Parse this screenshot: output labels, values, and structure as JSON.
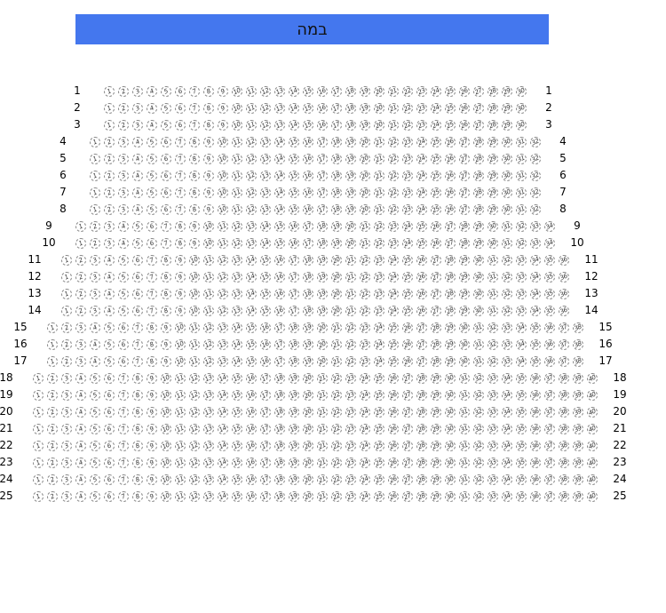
{
  "stage": {
    "label": "במה",
    "color": "#4477ee"
  },
  "rows": [
    {
      "label": "1",
      "seats": 30
    },
    {
      "label": "2",
      "seats": 30
    },
    {
      "label": "3",
      "seats": 30
    },
    {
      "label": "4",
      "seats": 32
    },
    {
      "label": "5",
      "seats": 32
    },
    {
      "label": "6",
      "seats": 32
    },
    {
      "label": "7",
      "seats": 32
    },
    {
      "label": "8",
      "seats": 32
    },
    {
      "label": "9",
      "seats": 34
    },
    {
      "label": "10",
      "seats": 34
    },
    {
      "label": "11",
      "seats": 36
    },
    {
      "label": "12",
      "seats": 36
    },
    {
      "label": "13",
      "seats": 36
    },
    {
      "label": "14",
      "seats": 36
    },
    {
      "label": "15",
      "seats": 38
    },
    {
      "label": "16",
      "seats": 38
    },
    {
      "label": "17",
      "seats": 38
    },
    {
      "label": "18",
      "seats": 40
    },
    {
      "label": "19",
      "seats": 40
    },
    {
      "label": "20",
      "seats": 40
    },
    {
      "label": "21",
      "seats": 40
    },
    {
      "label": "22",
      "seats": 40
    },
    {
      "label": "23",
      "seats": 40
    },
    {
      "label": "24",
      "seats": 40
    },
    {
      "label": "25",
      "seats": 40
    }
  ]
}
